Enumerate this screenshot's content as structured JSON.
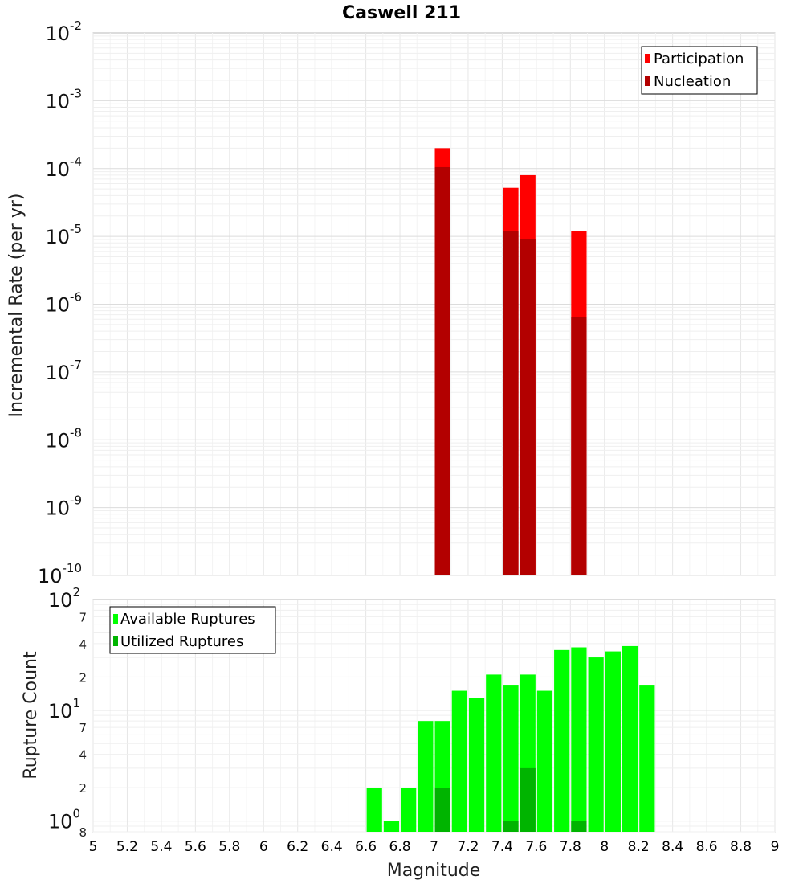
{
  "chart_data": [
    {
      "type": "bar",
      "title": "Caswell 211",
      "xlabel": "",
      "ylabel": "Incremental Rate (per yr)",
      "xlim": [
        5,
        9
      ],
      "y_scale": "log",
      "ylim": [
        1e-10,
        0.01
      ],
      "y_decades": [
        {
          "base": "10",
          "exp": "-2"
        },
        {
          "base": "10",
          "exp": "-3"
        },
        {
          "base": "10",
          "exp": "-4"
        },
        {
          "base": "10",
          "exp": "-5"
        },
        {
          "base": "10",
          "exp": "-6"
        },
        {
          "base": "10",
          "exp": "-7"
        },
        {
          "base": "10",
          "exp": "-8"
        },
        {
          "base": "10",
          "exp": "-9"
        },
        {
          "base": "10",
          "exp": "-10"
        }
      ],
      "bar_width": 0.1,
      "legend_position": "top-right",
      "grid": true,
      "series": [
        {
          "name": "Participation",
          "color": "#ff0000",
          "x": [
            7.05,
            7.45,
            7.55,
            7.85
          ],
          "values": [
            0.0002,
            5.2e-05,
            8e-05,
            1.2e-05
          ]
        },
        {
          "name": "Nucleation",
          "color": "#b30000",
          "x": [
            7.05,
            7.45,
            7.55,
            7.85
          ],
          "values": [
            0.000105,
            1.2e-05,
            9e-06,
            6.5e-07
          ]
        }
      ]
    },
    {
      "type": "bar",
      "title": "",
      "xlabel": "Magnitude",
      "ylabel": "Rupture Count",
      "xlim": [
        5,
        9
      ],
      "x_ticks": [
        "5",
        "5.2",
        "5.4",
        "5.6",
        "5.8",
        "6",
        "6.2",
        "6.4",
        "6.6",
        "6.8",
        "7",
        "7.2",
        "7.4",
        "7.6",
        "7.8",
        "8",
        "8.2",
        "8.4",
        "8.6",
        "8.8",
        "9"
      ],
      "y_scale": "log",
      "ylim": [
        0.8,
        100
      ],
      "y_decades": [
        {
          "base": "10",
          "exp": "2",
          "value": 100
        },
        {
          "base": "10",
          "exp": "1",
          "value": 10
        },
        {
          "base": "10",
          "exp": "0",
          "value": 1
        }
      ],
      "y_minor_labels": [
        {
          "label": "7",
          "value": 70
        },
        {
          "label": "4",
          "value": 40
        },
        {
          "label": "2",
          "value": 20
        },
        {
          "label": "7",
          "value": 7
        },
        {
          "label": "4",
          "value": 4
        },
        {
          "label": "2",
          "value": 2
        },
        {
          "label": "8",
          "value": 0.8
        }
      ],
      "bar_width": 0.1,
      "legend_position": "top-left",
      "grid": true,
      "series": [
        {
          "name": "Available Ruptures",
          "color": "#00ff00",
          "x": [
            6.65,
            6.75,
            6.85,
            6.95,
            7.05,
            7.15,
            7.25,
            7.35,
            7.45,
            7.55,
            7.65,
            7.75,
            7.85,
            7.95,
            8.05,
            8.15,
            8.25
          ],
          "values": [
            2,
            1,
            2,
            8,
            8,
            15,
            13,
            21,
            17,
            21,
            15,
            35,
            37,
            30,
            34,
            38,
            17
          ]
        },
        {
          "name": "Utilized Ruptures",
          "color": "#00b400",
          "x": [
            7.05,
            7.45,
            7.55,
            7.85
          ],
          "values": [
            2,
            1,
            3,
            1
          ]
        }
      ]
    }
  ]
}
